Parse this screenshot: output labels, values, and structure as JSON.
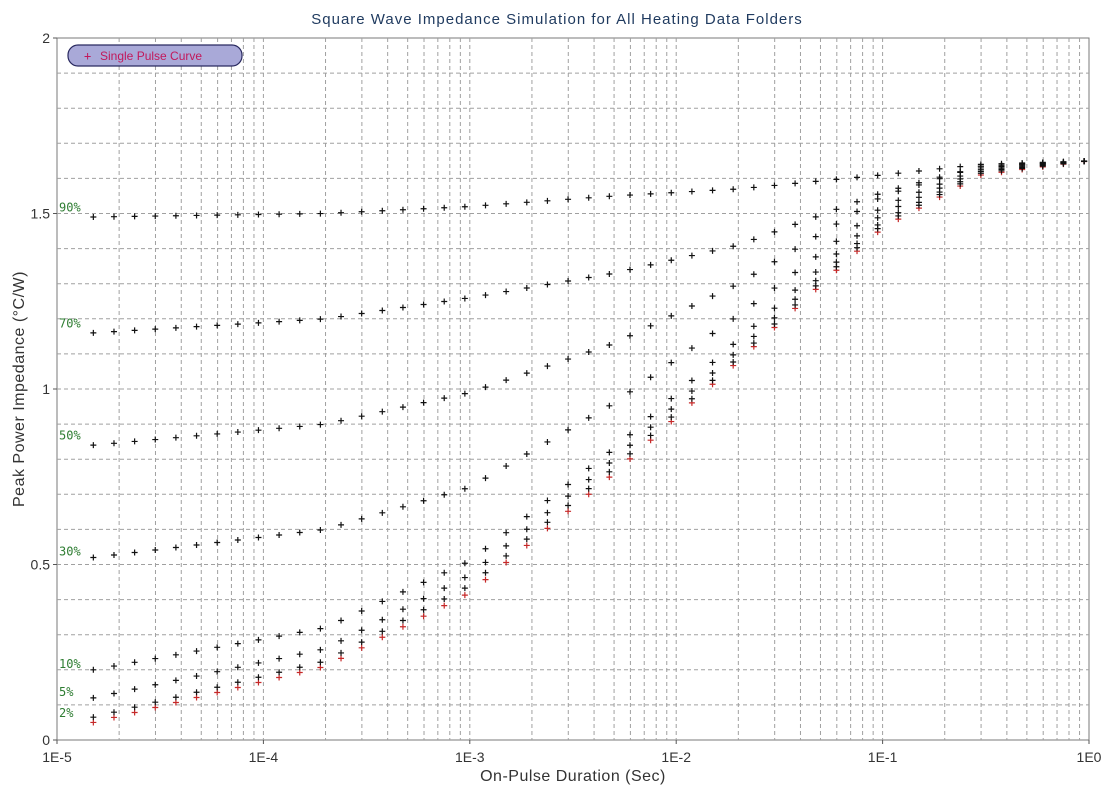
{
  "chart_data": {
    "type": "scatter",
    "title": "Square Wave Impedance Simulation for All Heating Data Folders",
    "xlabel": "On-Pulse Duration (Sec)",
    "ylabel": "Peak Power Impedance (°C/W)",
    "xscale": "log",
    "xlim": [
      1e-05,
      1
    ],
    "ylim": [
      0,
      2
    ],
    "x_ticks": [
      1e-05,
      0.0001,
      0.001,
      0.01,
      0.1,
      1
    ],
    "x_tick_labels": [
      "1E-5",
      "1E-4",
      "1E-3",
      "1E-2",
      "1E-1",
      "1E0"
    ],
    "y_ticks": [
      0,
      0.5,
      1,
      1.5,
      2
    ],
    "y_tick_labels": [
      "0",
      "0.5",
      "1",
      "1.5",
      "2"
    ],
    "grid": true,
    "legend": {
      "placement": "top-left",
      "entries": [
        {
          "label": "Single Pulse Curve",
          "marker": "+",
          "color": "#c62828"
        }
      ]
    },
    "colors": {
      "single_pulse": "#c62828",
      "duty_series": "#111111",
      "duty_labels": "#2e7d32",
      "legend_fill": "#a9a9d8",
      "title": "#1f3a5f"
    },
    "single_pulse": {
      "x": [
        1.5e-05,
        0.0002,
        0.001,
        0.005,
        0.02,
        0.1,
        0.3,
        1
      ],
      "y": [
        0.05,
        0.21,
        0.42,
        0.76,
        1.08,
        1.46,
        1.61,
        1.65
      ]
    },
    "series": [
      {
        "name": "2%",
        "label_y": 0.06,
        "x": [
          1.5e-05,
          0.0002,
          0.001,
          0.005,
          0.02,
          0.1,
          0.3,
          1
        ],
        "y": [
          0.065,
          0.225,
          0.44,
          0.775,
          1.09,
          1.47,
          1.615,
          1.65
        ]
      },
      {
        "name": "5%",
        "label_y": 0.12,
        "x": [
          1.5e-05,
          0.0002,
          0.001,
          0.005,
          0.02,
          0.1,
          0.3,
          1
        ],
        "y": [
          0.12,
          0.26,
          0.47,
          0.8,
          1.11,
          1.48,
          1.62,
          1.65
        ]
      },
      {
        "name": "10%",
        "label_y": 0.2,
        "x": [
          1.5e-05,
          0.0002,
          0.001,
          0.005,
          0.02,
          0.1,
          0.3,
          1
        ],
        "y": [
          0.2,
          0.32,
          0.51,
          0.83,
          1.14,
          1.5,
          1.625,
          1.65
        ]
      },
      {
        "name": "30%",
        "label_y": 0.52,
        "x": [
          1.5e-05,
          0.0002,
          0.001,
          0.005,
          0.02,
          0.1,
          0.3,
          1
        ],
        "y": [
          0.52,
          0.6,
          0.72,
          0.96,
          1.21,
          1.52,
          1.63,
          1.65
        ]
      },
      {
        "name": "50%",
        "label_y": 0.85,
        "x": [
          1.5e-05,
          0.0002,
          0.001,
          0.005,
          0.02,
          0.1,
          0.3,
          1
        ],
        "y": [
          0.84,
          0.9,
          0.99,
          1.13,
          1.3,
          1.55,
          1.635,
          1.65
        ]
      },
      {
        "name": "70%",
        "label_y": 1.17,
        "x": [
          1.5e-05,
          0.0002,
          0.001,
          0.005,
          0.02,
          0.1,
          0.3,
          1
        ],
        "y": [
          1.16,
          1.2,
          1.26,
          1.33,
          1.41,
          1.56,
          1.635,
          1.65
        ]
      },
      {
        "name": "90%",
        "label_y": 1.5,
        "x": [
          1.5e-05,
          0.0002,
          0.001,
          0.005,
          0.02,
          0.1,
          0.3,
          1
        ],
        "y": [
          1.49,
          1.5,
          1.52,
          1.55,
          1.57,
          1.61,
          1.64,
          1.65
        ]
      }
    ]
  }
}
